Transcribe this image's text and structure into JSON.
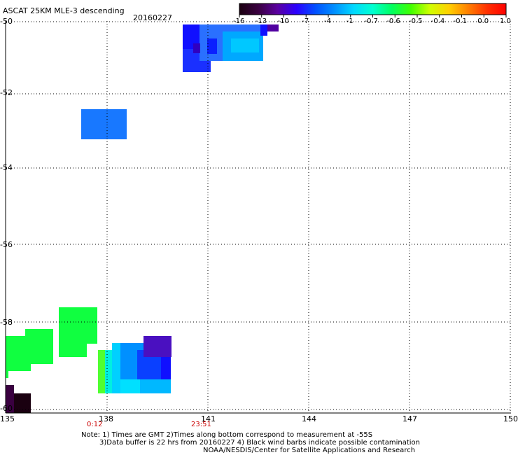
{
  "header": {
    "title": "ASCAT 25KM MLE-3 descending",
    "date": "20160227"
  },
  "colorbar": {
    "labels": [
      "-16",
      "-13",
      "-10",
      "-7",
      "-4",
      "-1",
      "-0.7",
      "-0.6",
      "-0.5",
      "-0.4",
      "-0.1",
      "0.0",
      "1.0"
    ],
    "colors": [
      "#1a0010",
      "#3a0040",
      "#5a00a0",
      "#2a00ff",
      "#0050ff",
      "#0090ff",
      "#00d8ff",
      "#00ffd0",
      "#00ff60",
      "#40ff00",
      "#d0ff00",
      "#ffd000",
      "#ff8000",
      "#ff3000",
      "#ff0000"
    ]
  },
  "axes": {
    "y_labels": [
      "-50",
      "-52",
      "-54",
      "-56",
      "-58",
      "-60"
    ],
    "x_labels": [
      "135",
      "138",
      "141",
      "144",
      "147",
      "150"
    ]
  },
  "time_labels": {
    "left": "0:12",
    "right": "23:51"
  },
  "notes": {
    "line1": "Note: 1) Times are GMT 2)Times along bottom correspond to measurement at -55S",
    "line2": "3)Data buffer is 22 hrs from 20160227 4) Black wind barbs indicate possible contamination",
    "line3": "NOAA/NESDIS/Center for Satellite Applications and Research"
  },
  "colors": {
    "grid": "#000000",
    "time_label": "#cc0000"
  }
}
